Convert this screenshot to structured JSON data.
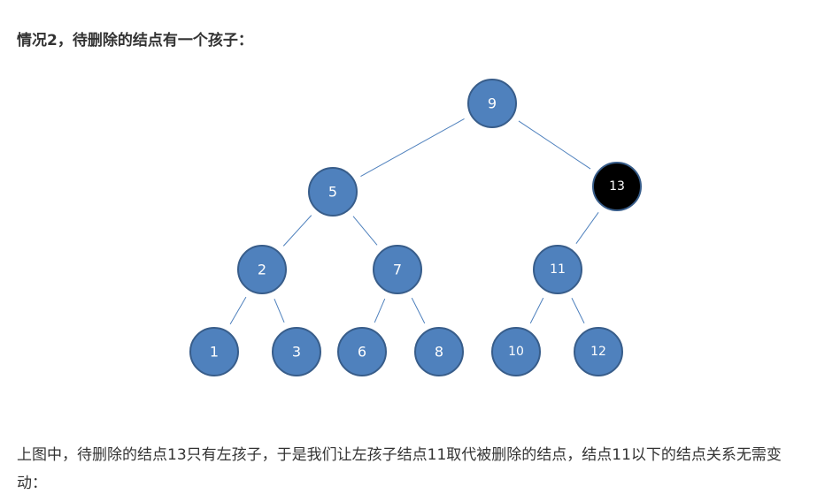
{
  "heading": "情况2，待删除的结点有一个孩子：",
  "tree": {
    "nodes": [
      {
        "id": "9",
        "label": "9",
        "color": "#4f81bd"
      },
      {
        "id": "5",
        "label": "5",
        "color": "#4f81bd"
      },
      {
        "id": "13",
        "label": "13",
        "color": "#000000"
      },
      {
        "id": "2",
        "label": "2",
        "color": "#4f81bd"
      },
      {
        "id": "7",
        "label": "7",
        "color": "#4f81bd"
      },
      {
        "id": "11",
        "label": "11",
        "color": "#4f81bd"
      },
      {
        "id": "1",
        "label": "1",
        "color": "#4f81bd"
      },
      {
        "id": "3",
        "label": "3",
        "color": "#4f81bd"
      },
      {
        "id": "6",
        "label": "6",
        "color": "#4f81bd"
      },
      {
        "id": "8",
        "label": "8",
        "color": "#4f81bd"
      },
      {
        "id": "10",
        "label": "10",
        "color": "#4f81bd"
      },
      {
        "id": "12",
        "label": "12",
        "color": "#4f81bd"
      }
    ],
    "edges": [
      [
        "9",
        "5"
      ],
      [
        "9",
        "13"
      ],
      [
        "5",
        "2"
      ],
      [
        "5",
        "7"
      ],
      [
        "13",
        "11"
      ],
      [
        "2",
        "1"
      ],
      [
        "2",
        "3"
      ],
      [
        "7",
        "6"
      ],
      [
        "7",
        "8"
      ],
      [
        "11",
        "10"
      ],
      [
        "11",
        "12"
      ]
    ]
  },
  "paragraph": "上图中，待删除的结点13只有左孩子，于是我们让左孩子结点11取代被删除的结点，结点11以下的结点关系无需变动："
}
